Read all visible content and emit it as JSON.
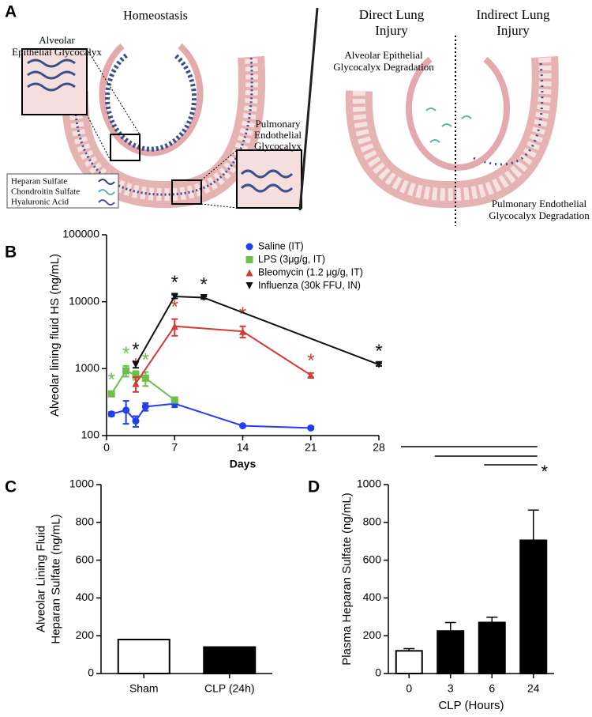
{
  "panel_labels": [
    "A",
    "B",
    "C",
    "D"
  ],
  "diagram": {
    "homeostasis_title": "Homeostasis",
    "alveolar_inset_label": [
      "Alveolar",
      "Epithelial Glycocalyx"
    ],
    "endothelial_inset_label": [
      "Pulmonary",
      "Endothelial",
      "Glycocalyx"
    ],
    "legend": [
      "Heparan Sulfate",
      "Chondroitin Sulfate",
      "Hyaluronic Acid"
    ],
    "direct_title": [
      "Direct Lung",
      "Injury"
    ],
    "indirect_title": [
      "Indirect Lung",
      "Injury"
    ],
    "epithelial_degradation": [
      "Alveolar Epithelial",
      "Glycocalyx Degradation"
    ],
    "endothelial_degradation": [
      "Pulmonary Endothelial",
      "Glycocalyx Degradation"
    ]
  },
  "chart_data": [
    {
      "type": "line",
      "xlabel": "Days",
      "ylabel": "Alveolar lining fluid HS (ng/mL)",
      "xlim": [
        0,
        28
      ],
      "xticks": [
        0,
        7,
        14,
        21,
        28
      ],
      "ylim": [
        100,
        100000
      ],
      "yticks": [
        100,
        1000,
        10000,
        100000
      ],
      "log_y": true,
      "legend": "upper right",
      "series": [
        {
          "name": "Saline (IT)",
          "color": "#1f3ff0",
          "marker": "circle",
          "x": [
            0.5,
            2,
            3,
            4,
            7,
            14,
            21
          ],
          "values": [
            210,
            240,
            165,
            270,
            300,
            140,
            130
          ],
          "errors": [
            15,
            90,
            30,
            35,
            35,
            5,
            5
          ],
          "labels": [
            null,
            null,
            null,
            null,
            null,
            null,
            null
          ]
        },
        {
          "name": "LPS (3μg/g, IT)",
          "color": "#6cbf4b",
          "marker": "square",
          "x": [
            0.5,
            2,
            3,
            4,
            7
          ],
          "values": [
            420,
            930,
            800,
            720,
            340
          ],
          "errors": [
            30,
            170,
            120,
            170,
            30
          ],
          "labels": [
            "*",
            "*",
            null,
            "*",
            null
          ]
        },
        {
          "name": "Bleomycin (1.2 μg/g, IT)",
          "color": "#d63a36",
          "marker": "triangle",
          "x": [
            3,
            7,
            14,
            21
          ],
          "values": [
            600,
            4300,
            3600,
            800
          ],
          "errors": [
            150,
            1200,
            700,
            60
          ],
          "labels": [
            "*",
            "*",
            "*",
            "*"
          ]
        },
        {
          "name": "Influenza (30k FFU, IN)",
          "color": "#111111",
          "marker": "triangle-down",
          "x": [
            3,
            7,
            10,
            28
          ],
          "values": [
            1150,
            12000,
            11500,
            1150
          ],
          "errors": [
            120,
            800,
            500,
            50
          ],
          "labels": [
            "*",
            "*",
            "*",
            "*"
          ]
        }
      ]
    },
    {
      "type": "bar",
      "ylabel": [
        "Alveolar Lining Fluid",
        "Heparan Sulfate (ng/mL)"
      ],
      "categories": [
        "Sham",
        "CLP (24h)"
      ],
      "values": [
        180,
        140
      ],
      "colors": [
        "#ffffff",
        "#000000"
      ],
      "ylim": [
        0,
        1000
      ],
      "yticks": [
        0,
        200,
        400,
        600,
        800,
        1000
      ]
    },
    {
      "type": "bar",
      "xlabel": "CLP (Hours)",
      "ylabel": "Plasma Heparan Sulfate (ng/mL)",
      "categories": [
        "0",
        "3",
        "6",
        "24"
      ],
      "values": [
        120,
        225,
        270,
        705
      ],
      "errors": [
        12,
        45,
        28,
        160
      ],
      "colors": [
        "#ffffff",
        "#000000",
        "#000000",
        "#000000"
      ],
      "ylim": [
        0,
        1000
      ],
      "yticks": [
        0,
        200,
        400,
        600,
        800,
        1000
      ],
      "significance_label": "*"
    }
  ]
}
